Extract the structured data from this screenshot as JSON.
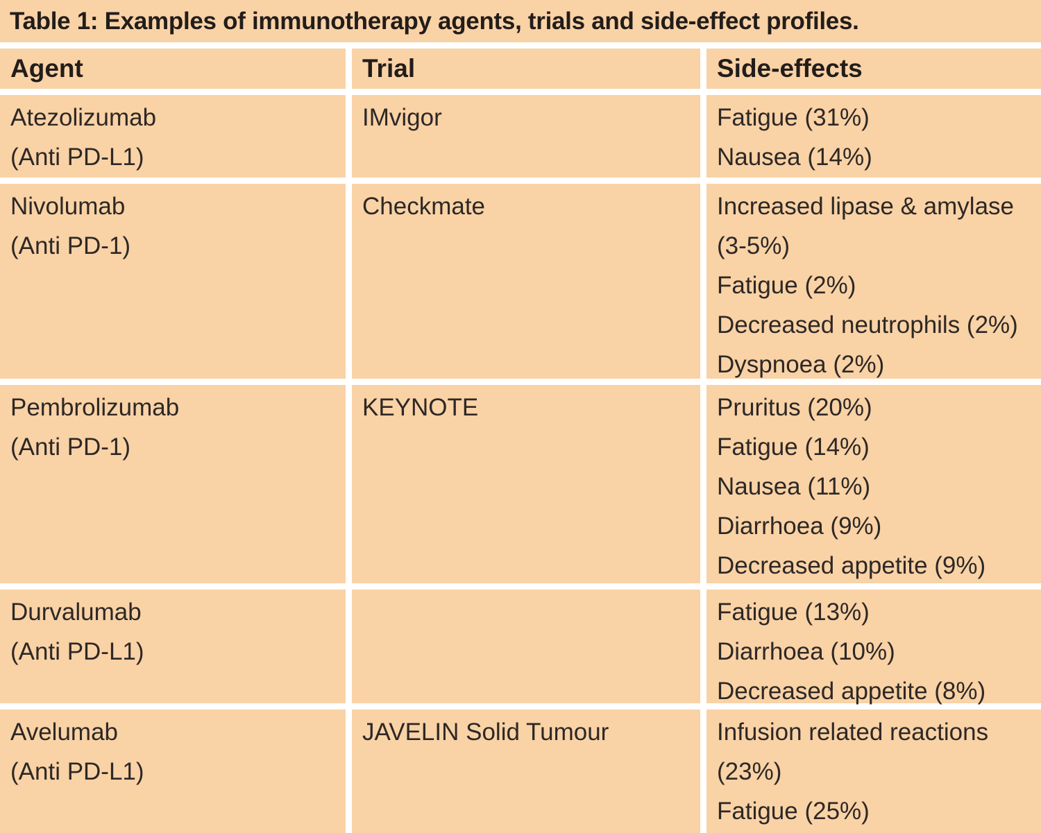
{
  "title": "Table 1: Examples of immunotherapy agents, trials and side-effect profiles.",
  "columns": [
    "Agent",
    "Trial",
    "Side-effects"
  ],
  "rows": [
    {
      "agent_name": "Atezolizumab",
      "agent_class": "(Anti PD-L1)",
      "trial": "IMvigor",
      "side_effects": [
        "Fatigue (31%)",
        "Nausea (14%)"
      ]
    },
    {
      "agent_name": "Nivolumab",
      "agent_class": "(Anti PD-1)",
      "trial": "Checkmate",
      "side_effects": [
        "Increased lipase & amylase (3-5%)",
        "Fatigue (2%)",
        "Decreased neutrophils (2%)",
        "Dyspnoea (2%)"
      ]
    },
    {
      "agent_name": "Pembrolizumab",
      "agent_class": "(Anti PD-1)",
      "trial": "KEYNOTE",
      "side_effects": [
        "Pruritus (20%)",
        "Fatigue (14%)",
        "Nausea (11%)",
        "Diarrhoea (9%)",
        "Decreased appetite (9%)"
      ]
    },
    {
      "agent_name": "Durvalumab",
      "agent_class": "(Anti PD-L1)",
      "trial": "",
      "side_effects": [
        "Fatigue (13%)",
        "Diarrhoea (10%)",
        "Decreased appetite (8%)"
      ]
    },
    {
      "agent_name": "Avelumab",
      "agent_class": "(Anti PD-L1)",
      "trial": "JAVELIN Solid Tumour",
      "side_effects": [
        "Infusion related reactions (23%)",
        "Fatigue (25%)"
      ]
    }
  ],
  "colors": {
    "cell_bg": "#f9d2a6",
    "divider": "#ffffff",
    "title_text": "#221d1a",
    "body_text": "#2d2825"
  }
}
